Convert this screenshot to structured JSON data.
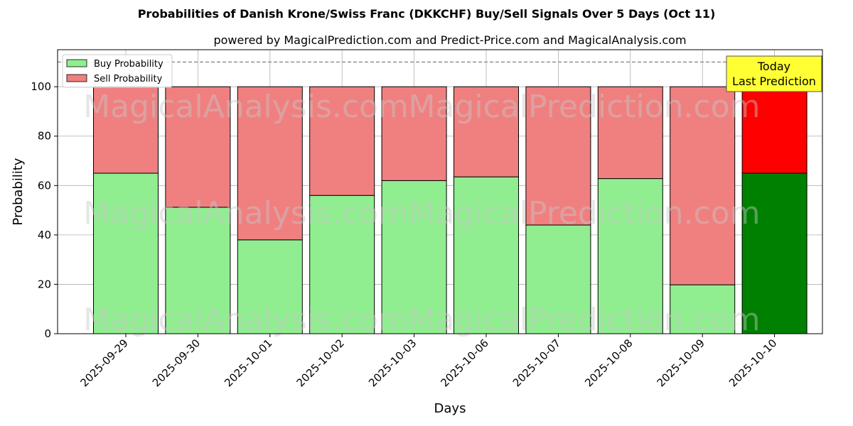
{
  "chart_data": {
    "type": "bar",
    "stacked": true,
    "title": "Probabilities of Danish Krone/Swiss Franc (DKKCHF) Buy/Sell Signals Over 5 Days (Oct 11)",
    "subtitle": "powered by MagicalPrediction.com and Predict-Price.com and MagicalAnalysis.com",
    "xlabel": "Days",
    "ylabel": "Probability",
    "ylim": [
      0,
      115
    ],
    "yticks": [
      0,
      20,
      40,
      60,
      80,
      100
    ],
    "reference_line": 110,
    "grid": true,
    "legend_placement": "top-left",
    "categories": [
      "2025-09-29",
      "2025-09-30",
      "2025-10-01",
      "2025-10-02",
      "2025-10-03",
      "2025-10-06",
      "2025-10-07",
      "2025-10-08",
      "2025-10-09",
      "2025-10-10"
    ],
    "series": [
      {
        "name": "Buy Probability",
        "color": "#90ee90",
        "values": [
          65,
          51.2,
          38,
          56,
          62,
          63.5,
          44,
          62.8,
          19.8,
          65
        ]
      },
      {
        "name": "Sell Probability",
        "color": "#f08080",
        "values": [
          35,
          48.8,
          62,
          44,
          38,
          36.5,
          56,
          37.2,
          80.2,
          35
        ]
      }
    ],
    "highlight": {
      "index": 9,
      "buy_color": "#008000",
      "sell_color": "#ff0000"
    },
    "annotation": {
      "lines": [
        "Today",
        "Last Prediction"
      ],
      "background": "#ffff33"
    },
    "watermarks": [
      "MagicalAnalysis.com",
      "MagicalPrediction.com"
    ]
  }
}
